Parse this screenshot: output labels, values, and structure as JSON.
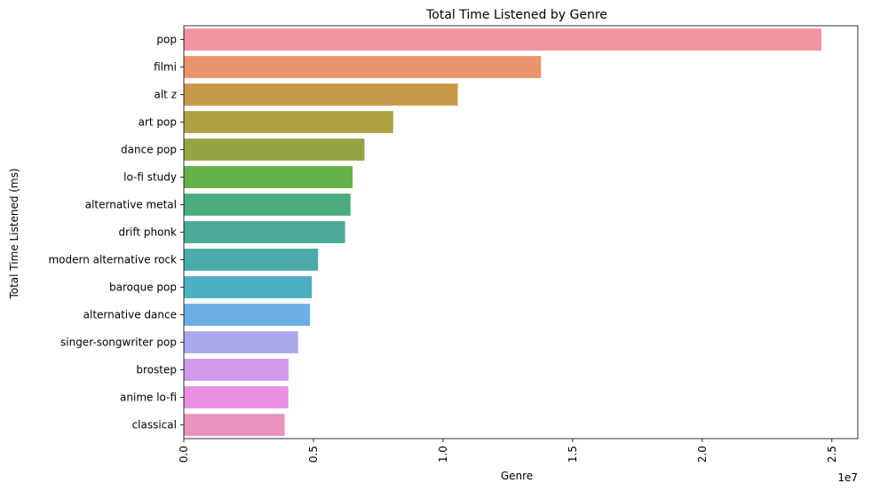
{
  "chart_data": {
    "type": "bar",
    "orientation": "horizontal",
    "title": "Total Time Listened by Genre",
    "xlabel": "Genre",
    "ylabel": "Total Time Listened (ms)",
    "offset_text": "1e7",
    "xlim": [
      0,
      2.6
    ],
    "x_ticks": [
      "0.0",
      "0.5",
      "1.0",
      "1.5",
      "2.0",
      "2.5"
    ],
    "x_tick_rotation": -90,
    "grid": false,
    "categories": [
      "pop",
      "filmi",
      "alt z",
      "art pop",
      "dance pop",
      "lo-fi study",
      "alternative metal",
      "drift phonk",
      "modern alternative rock",
      "baroque pop",
      "alternative dance",
      "singer-songwriter pop",
      "brostep",
      "anime lo-fi",
      "classical"
    ],
    "values": [
      2.46,
      1.378,
      1.057,
      0.808,
      0.697,
      0.651,
      0.643,
      0.622,
      0.518,
      0.494,
      0.487,
      0.441,
      0.404,
      0.403,
      0.389
    ],
    "colors": [
      "#ee959f",
      "#e8956e",
      "#c69a48",
      "#b0a244",
      "#96a544",
      "#63b148",
      "#4bac7d",
      "#4ba999",
      "#4aaaaa",
      "#4cafc4",
      "#6aafe5",
      "#aaa8ec",
      "#d199e9",
      "#ea8fe2",
      "#ea93c0"
    ]
  }
}
